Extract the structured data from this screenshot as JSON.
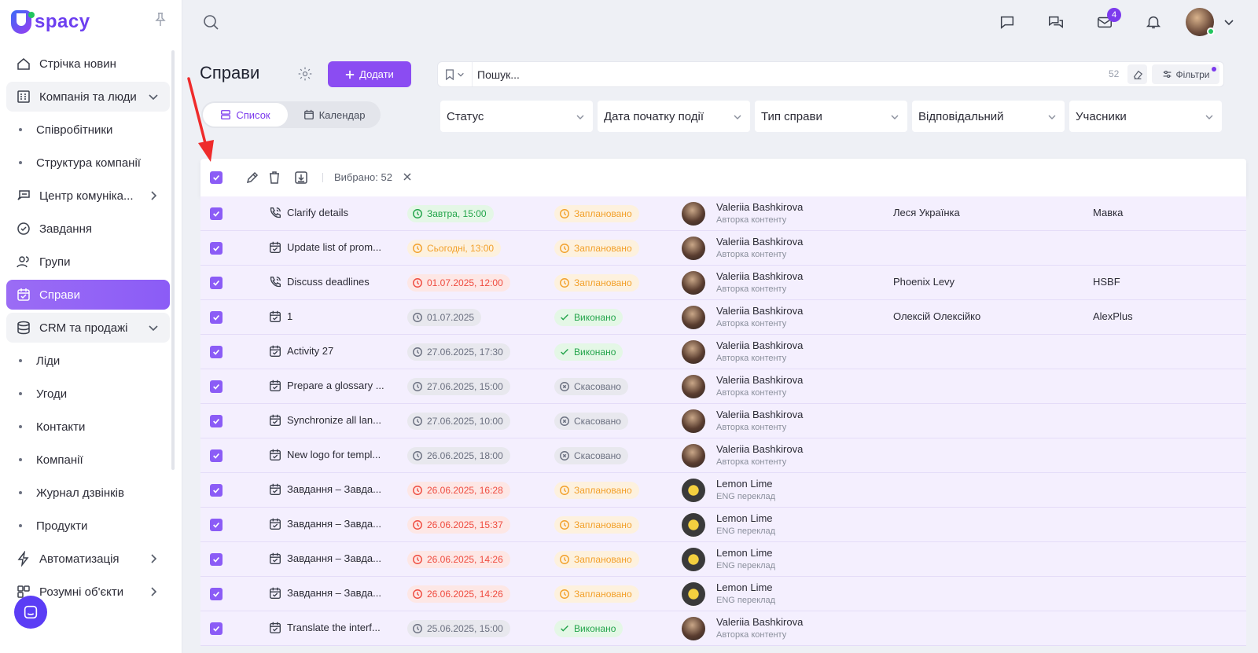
{
  "brand": {
    "name": "spacy",
    "colors": {
      "accent": "#8b5cf6",
      "button": "#8b4cf2"
    }
  },
  "sidebar": {
    "items": [
      {
        "label": "Стрічка новин",
        "icon": "home-icon",
        "kind": "item"
      },
      {
        "label": "Компанія та люди",
        "icon": "building-icon",
        "kind": "group",
        "expanded": true
      },
      {
        "label": "Співробітники",
        "kind": "sub"
      },
      {
        "label": "Структура компанії",
        "kind": "sub"
      },
      {
        "label": "Центр комуніка...",
        "icon": "communication-icon",
        "kind": "item",
        "chevron": "right"
      },
      {
        "label": "Завдання",
        "icon": "check-circle-icon",
        "kind": "item"
      },
      {
        "label": "Групи",
        "icon": "users-icon",
        "kind": "item"
      },
      {
        "label": "Справи",
        "icon": "calendar-check-icon",
        "kind": "item",
        "active": true
      },
      {
        "label": "CRM та продажі",
        "icon": "database-icon",
        "kind": "group",
        "expanded": true
      },
      {
        "label": "Ліди",
        "kind": "sub"
      },
      {
        "label": "Угоди",
        "kind": "sub"
      },
      {
        "label": "Контакти",
        "kind": "sub"
      },
      {
        "label": "Компанії",
        "kind": "sub"
      },
      {
        "label": "Журнал дзвінків",
        "kind": "sub"
      },
      {
        "label": "Продукти",
        "kind": "sub"
      },
      {
        "label": "Автоматизація",
        "icon": "lightning-icon",
        "kind": "item",
        "chevron": "right"
      },
      {
        "label": "Розумні об'єкти",
        "icon": "smart-objects-icon",
        "kind": "item",
        "chevron": "right"
      }
    ]
  },
  "topbar": {
    "mail_badge": "4"
  },
  "header": {
    "title": "Справи",
    "add_label": "Додати",
    "views": {
      "list": "Список",
      "calendar": "Календар"
    }
  },
  "search": {
    "placeholder": "Пошук...",
    "count": "52",
    "filters_label": "Фільтри"
  },
  "filters": [
    "Статус",
    "Дата початку події",
    "Тип справи",
    "Відповідальний",
    "Учасники"
  ],
  "bulk": {
    "selected_label": "Вибрано: 52"
  },
  "rows": [
    {
      "type_icon": "phone-call-icon",
      "title": "Clarify details",
      "date": "Завтра, 15:00",
      "date_style": "green",
      "date_icon": "clock-icon",
      "status": "Заплановано",
      "status_style": "orange",
      "status_icon": "clock-icon",
      "avatar": "v",
      "name": "Valeriia Bashkirova",
      "role": "Авторка контенту",
      "contact": "Леся Українка",
      "company": "Мавка"
    },
    {
      "type_icon": "calendar-check-icon",
      "title": "Update list of prom...",
      "date": "Сьогодні, 13:00",
      "date_style": "orange",
      "date_icon": "clock-icon",
      "status": "Заплановано",
      "status_style": "orange",
      "status_icon": "clock-icon",
      "avatar": "v",
      "name": "Valeriia Bashkirova",
      "role": "Авторка контенту",
      "contact": "",
      "company": ""
    },
    {
      "type_icon": "phone-call-icon",
      "title": "Discuss deadlines",
      "date": "01.07.2025, 12:00",
      "date_style": "red",
      "date_icon": "clock-icon",
      "status": "Заплановано",
      "status_style": "orange",
      "status_icon": "clock-icon",
      "avatar": "v",
      "name": "Valeriia Bashkirova",
      "role": "Авторка контенту",
      "contact": "Phoenix Levy",
      "company": "HSBF"
    },
    {
      "type_icon": "calendar-check-icon",
      "title": "1",
      "date": "01.07.2025",
      "date_style": "gray",
      "date_icon": "clock-icon",
      "status": "Виконано",
      "status_style": "green",
      "status_icon": "check-icon",
      "avatar": "v",
      "name": "Valeriia Bashkirova",
      "role": "Авторка контенту",
      "contact": "Олексій Олексійко",
      "company": "AlexPlus"
    },
    {
      "type_icon": "calendar-check-icon",
      "title": "Activity 27",
      "date": "27.06.2025, 17:30",
      "date_style": "gray",
      "date_icon": "clock-icon",
      "status": "Виконано",
      "status_style": "green",
      "status_icon": "check-icon",
      "avatar": "v",
      "name": "Valeriia Bashkirova",
      "role": "Авторка контенту",
      "contact": "",
      "company": ""
    },
    {
      "type_icon": "calendar-check-icon",
      "title": "Prepare a glossary ...",
      "date": "27.06.2025, 15:00",
      "date_style": "gray",
      "date_icon": "clock-icon",
      "status": "Скасовано",
      "status_style": "gray",
      "status_icon": "x-circle-icon",
      "avatar": "v",
      "name": "Valeriia Bashkirova",
      "role": "Авторка контенту",
      "contact": "",
      "company": ""
    },
    {
      "type_icon": "calendar-check-icon",
      "title": "Synchronize all lan...",
      "date": "27.06.2025, 10:00",
      "date_style": "gray",
      "date_icon": "clock-icon",
      "status": "Скасовано",
      "status_style": "gray",
      "status_icon": "x-circle-icon",
      "avatar": "v",
      "name": "Valeriia Bashkirova",
      "role": "Авторка контенту",
      "contact": "",
      "company": ""
    },
    {
      "type_icon": "calendar-check-icon",
      "title": "New logo for templ...",
      "date": "26.06.2025, 18:00",
      "date_style": "gray",
      "date_icon": "clock-icon",
      "status": "Скасовано",
      "status_style": "gray",
      "status_icon": "x-circle-icon",
      "avatar": "v",
      "name": "Valeriia Bashkirova",
      "role": "Авторка контенту",
      "contact": "",
      "company": ""
    },
    {
      "type_icon": "calendar-check-icon",
      "title": "Завдання – Завда...",
      "date": "26.06.2025, 16:28",
      "date_style": "red",
      "date_icon": "clock-icon",
      "status": "Заплановано",
      "status_style": "orange",
      "status_icon": "clock-icon",
      "avatar": "l",
      "name": "Lemon Lime",
      "role": "ENG переклад",
      "contact": "",
      "company": ""
    },
    {
      "type_icon": "calendar-check-icon",
      "title": "Завдання – Завда...",
      "date": "26.06.2025, 15:37",
      "date_style": "red",
      "date_icon": "clock-icon",
      "status": "Заплановано",
      "status_style": "orange",
      "status_icon": "clock-icon",
      "avatar": "l",
      "name": "Lemon Lime",
      "role": "ENG переклад",
      "contact": "",
      "company": ""
    },
    {
      "type_icon": "calendar-check-icon",
      "title": "Завдання – Завда...",
      "date": "26.06.2025, 14:26",
      "date_style": "red",
      "date_icon": "clock-icon",
      "status": "Заплановано",
      "status_style": "orange",
      "status_icon": "clock-icon",
      "avatar": "l",
      "name": "Lemon Lime",
      "role": "ENG переклад",
      "contact": "",
      "company": ""
    },
    {
      "type_icon": "calendar-check-icon",
      "title": "Завдання – Завда...",
      "date": "26.06.2025, 14:26",
      "date_style": "red",
      "date_icon": "clock-icon",
      "status": "Заплановано",
      "status_style": "orange",
      "status_icon": "clock-icon",
      "avatar": "l",
      "name": "Lemon Lime",
      "role": "ENG переклад",
      "contact": "",
      "company": ""
    },
    {
      "type_icon": "calendar-check-icon",
      "title": "Translate the interf...",
      "date": "25.06.2025, 15:00",
      "date_style": "gray",
      "date_icon": "clock-icon",
      "status": "Виконано",
      "status_style": "green",
      "status_icon": "check-icon",
      "avatar": "v",
      "name": "Valeriia Bashkirova",
      "role": "Авторка контенту",
      "contact": "",
      "company": ""
    }
  ]
}
